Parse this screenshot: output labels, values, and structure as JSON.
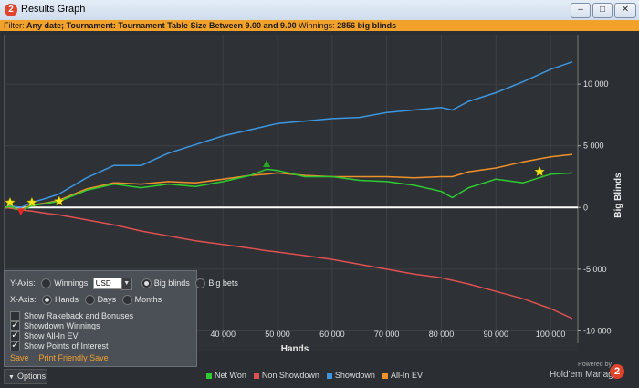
{
  "window": {
    "title": "Results Graph",
    "app_icon": "2",
    "minimize": "–",
    "maximize": "□",
    "close": "✕"
  },
  "filter": {
    "prefix": "Filter:",
    "text": "Any date; Tournament: Tournament Table Size  Between 9.00 and 9.00",
    "winnings_label": "Winnings:",
    "winnings_value": "2856 big blinds"
  },
  "options": {
    "yaxis_label": "Y-Axis:",
    "winnings": "Winnings",
    "currency": "USD",
    "big_blinds": "Big blinds",
    "big_bets": "Big bets",
    "xaxis_label": "X-Axis:",
    "hands": "Hands",
    "days": "Days",
    "months": "Months",
    "show_rakeback": "Show Rakeback and Bonuses",
    "showdown_winnings": "Showdown Winnings",
    "show_allin_ev": "Show All-In EV",
    "show_poi": "Show Points of Interest",
    "save": "Save",
    "print_friendly": "Print Friendly Save",
    "button": "Options"
  },
  "branding": {
    "powered_by": "Powered by",
    "name": "Hold'em Manager",
    "logo": "2"
  },
  "colors": {
    "net_won": "#2ecc2e",
    "non_showdown": "#e05050",
    "showdown": "#3c96e0",
    "allin_ev": "#f0902a",
    "poi_star": "#f5e61a"
  },
  "chart_data": {
    "type": "line",
    "xlabel": "Hands",
    "ylabel": "Big Blinds",
    "xlim": [
      0,
      105000
    ],
    "ylim": [
      -11000,
      14000
    ],
    "x_ticks": [
      40000,
      50000,
      60000,
      70000,
      80000,
      90000,
      100000
    ],
    "x_tick_labels": [
      "40 000",
      "50 000",
      "60 000",
      "70 000",
      "80 000",
      "90 000",
      "100 000"
    ],
    "y_ticks": [
      10000,
      5000,
      0,
      -5000,
      -10000
    ],
    "y_tick_labels": [
      "10 000",
      "5 000",
      "0",
      "-5 000",
      "-10 000"
    ],
    "x": [
      0,
      1000,
      3000,
      5000,
      8000,
      10000,
      15000,
      20000,
      25000,
      30000,
      35000,
      40000,
      45000,
      48000,
      50000,
      55000,
      60000,
      65000,
      70000,
      75000,
      80000,
      82000,
      85000,
      90000,
      95000,
      100000,
      104000
    ],
    "series": [
      {
        "name": "Net Won",
        "values": [
          0,
          80,
          -250,
          150,
          350,
          500,
          1400,
          1900,
          1600,
          1900,
          1700,
          2100,
          2600,
          3100,
          3000,
          2500,
          2500,
          2200,
          2100,
          1800,
          1300,
          800,
          1600,
          2300,
          2000,
          2700,
          2800
        ]
      },
      {
        "name": "Non Showdown",
        "values": [
          0,
          -50,
          -200,
          -300,
          -500,
          -600,
          -1000,
          -1400,
          -1900,
          -2300,
          -2700,
          -3000,
          -3300,
          -3500,
          -3600,
          -3900,
          -4200,
          -4600,
          -5000,
          -5400,
          -5700,
          -5900,
          -6200,
          -6800,
          -7400,
          -8200,
          -9000
        ]
      },
      {
        "name": "Showdown",
        "values": [
          0,
          130,
          0,
          400,
          800,
          1100,
          2400,
          3400,
          3400,
          4400,
          5100,
          5800,
          6300,
          6600,
          6800,
          7000,
          7200,
          7300,
          7700,
          7900,
          8100,
          7900,
          8600,
          9300,
          10200,
          11200,
          11800
        ]
      },
      {
        "name": "All-In EV",
        "values": [
          0,
          50,
          -150,
          200,
          400,
          600,
          1500,
          2000,
          1900,
          2100,
          2000,
          2300,
          2600,
          2700,
          2800,
          2600,
          2500,
          2500,
          2500,
          2400,
          2500,
          2500,
          2900,
          3200,
          3700,
          4100,
          4300
        ]
      }
    ],
    "points_of_interest": [
      {
        "type": "star",
        "x": 1000,
        "y": 400
      },
      {
        "type": "star",
        "x": 5000,
        "y": 400
      },
      {
        "type": "star",
        "x": 10000,
        "y": 500
      },
      {
        "type": "star",
        "x": 98000,
        "y": 2900
      },
      {
        "type": "up-triangle",
        "x": 48000,
        "y": 3500
      },
      {
        "type": "down-triangle",
        "x": 3000,
        "y": -300
      }
    ],
    "grid": true
  }
}
